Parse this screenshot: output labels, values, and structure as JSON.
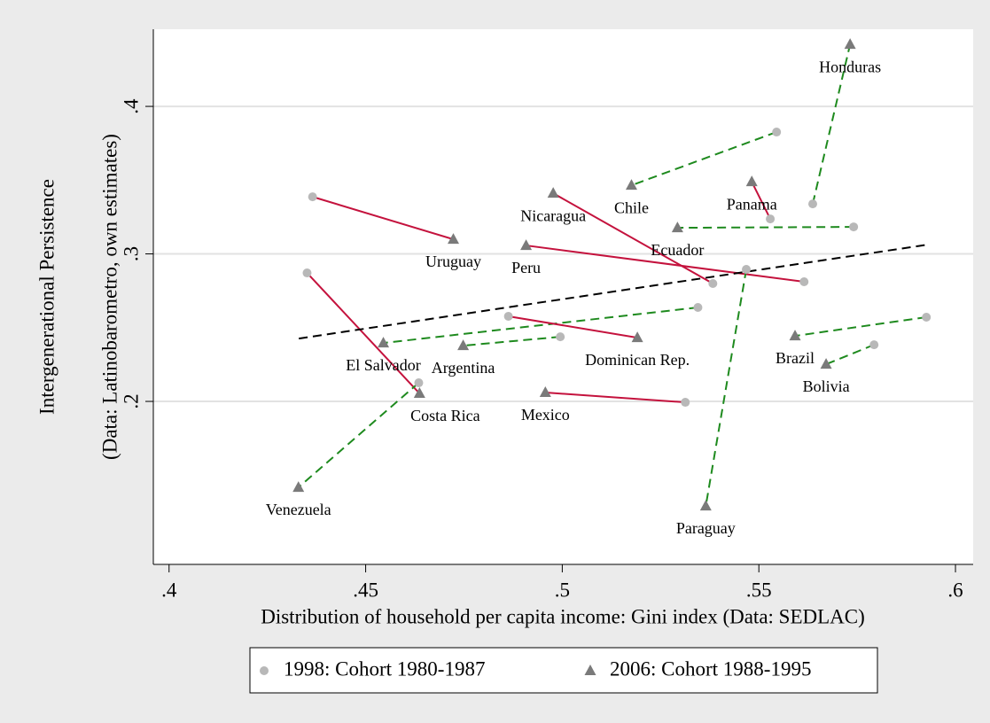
{
  "chart_data": {
    "type": "scatter",
    "xlabel": "Distribution of household per capita income: Gini index (Data: SEDLAC)",
    "ylabel": [
      "Intergenerational Persistence",
      "(Data: Latinobarometro, own estimates)"
    ],
    "categories": [
      "Uruguay",
      "Costa Rica",
      "Venezuela",
      "El Salvador",
      "Argentina",
      "Dominican Rep.",
      "Mexico",
      "Peru",
      "Nicaragua",
      "Chile",
      "Panama",
      "Ecuador",
      "Paraguay",
      "Honduras",
      "Brazil",
      "Bolivia"
    ],
    "series": [
      {
        "name": "1998: Cohort 1980-1987",
        "color": "#b8b8b8",
        "marker": "circle",
        "x": [
          0.4365,
          0.4351,
          0.4635,
          0.5345,
          0.4995,
          0.4863,
          0.5313,
          0.5615,
          0.5383,
          0.5545,
          0.5529,
          0.5741,
          0.5468,
          0.5637,
          0.5926,
          0.5793
        ],
        "values": [
          0.3387,
          0.2871,
          0.2126,
          0.2637,
          0.2438,
          0.2577,
          0.1994,
          0.2811,
          0.2799,
          0.3826,
          0.3237,
          0.3183,
          0.2895,
          0.3339,
          0.2571,
          0.2384
        ]
      },
      {
        "name": "2006: Cohort 1988-1995",
        "color": "#7a7a7a",
        "marker": "triangle",
        "x": [
          0.4723,
          0.4637,
          0.4329,
          0.4545,
          0.4748,
          0.5191,
          0.4957,
          0.4908,
          0.4977,
          0.5176,
          0.5482,
          0.5293,
          0.5365,
          0.5732,
          0.5592,
          0.5671
        ],
        "values": [
          0.3099,
          0.2054,
          0.1417,
          0.2396,
          0.2378,
          0.2432,
          0.206,
          0.3057,
          0.3411,
          0.3465,
          0.3489,
          0.3177,
          0.1291,
          0.442,
          0.2444,
          0.2252
        ]
      }
    ],
    "connector_colors": [
      "#c4123d",
      "#c4123d",
      "#1e8a1e",
      "#1e8a1e",
      "#1e8a1e",
      "#c4123d",
      "#c4123d",
      "#c4123d",
      "#c4123d",
      "#1e8a1e",
      "#c4123d",
      "#1e8a1e",
      "#1e8a1e",
      "#1e8a1e",
      "#1e8a1e",
      "#1e8a1e"
    ],
    "connector_styles": [
      "solid",
      "solid",
      "dashed",
      "dashed",
      "dashed",
      "solid",
      "solid",
      "solid",
      "solid",
      "dashed",
      "solid",
      "dashed",
      "dashed",
      "dashed",
      "dashed",
      "dashed"
    ],
    "fit": {
      "x": [
        0.433,
        0.593
      ],
      "values": [
        0.2426,
        0.3063
      ],
      "color": "#000000",
      "style": "dashed"
    },
    "xlim": [
      0.396,
      0.6045
    ],
    "ylim": [
      0.0895,
      0.4523
    ],
    "xticks": [
      {
        "value": 0.4,
        "label": ".4"
      },
      {
        "value": 0.45,
        "label": ".45"
      },
      {
        "value": 0.5,
        "label": ".5"
      },
      {
        "value": 0.55,
        "label": ".55"
      },
      {
        "value": 0.6,
        "label": ".6"
      }
    ],
    "yticks": [
      {
        "value": 0.2,
        "label": ".2"
      },
      {
        "value": 0.3,
        "label": ".3"
      },
      {
        "value": 0.4,
        "label": ".4"
      }
    ],
    "grid": true
  }
}
